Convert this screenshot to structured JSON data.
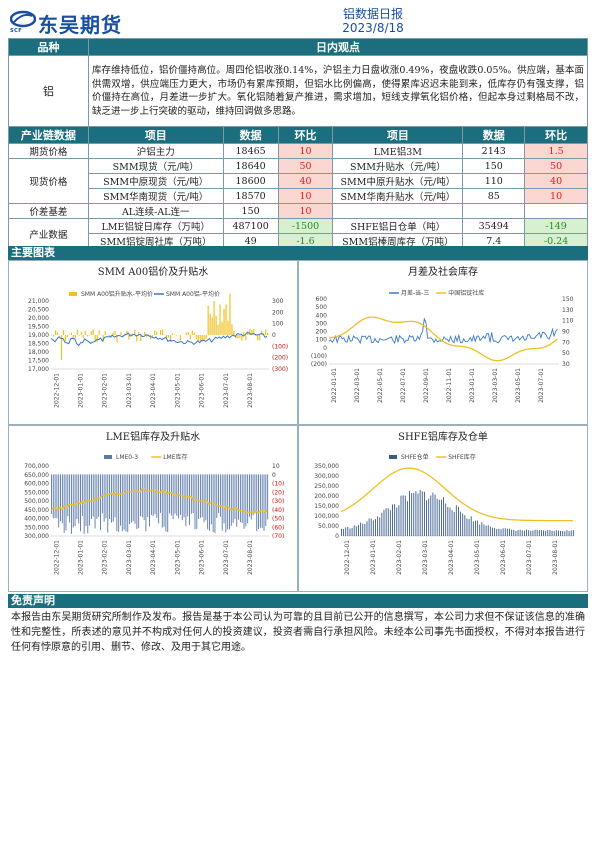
{
  "header": {
    "logo_text": "东吴期货",
    "logo_sub": "SCF",
    "title": "铝数据日报",
    "date": "2023/8/18"
  },
  "view": {
    "col_kind": "品种",
    "col_view": "日内观点",
    "kind": "铝",
    "text": "库存维持低位，铝价僵持高位。周四伦铝收涨0.14%，沪铝主力日盘收涨0.49%，夜盘收跌0.05%。供应端，基本面供需双增，供应端压力更大，市场仍有累库预期，但铝水比例偏高，使得累库迟迟未能到来，低库存仍有强支撑，铝价僵持在高位，月差进一步扩大。氧化铝随着复产推进，需求增加，短线支撑氧化铝价格，但起本身过剩格局不改，缺乏进一步上行突破的驱动，维持回调做多思路。"
  },
  "data_table": {
    "headers": [
      "产业链数据",
      "项目",
      "数据",
      "环比",
      "项目",
      "数据",
      "环比"
    ],
    "rows": [
      {
        "group": "期货价格",
        "left_item": "沪铝主力",
        "left_value": "18465",
        "left_change": "10",
        "left_dir": "up",
        "right_item": "LME铝3M",
        "right_value": "2143",
        "right_change": "1.5",
        "right_dir": "up"
      },
      {
        "group": "现货价格",
        "left_item": "SMM现货（元/吨）",
        "left_value": "18640",
        "left_change": "50",
        "left_dir": "up",
        "right_item": "SMM升贴水（元/吨）",
        "right_value": "150",
        "right_change": "50",
        "right_dir": "up"
      },
      {
        "group": "",
        "left_item": "SMM中原现货（元/吨）",
        "left_value": "18600",
        "left_change": "40",
        "left_dir": "up",
        "right_item": "SMM中原升贴水（元/吨）",
        "right_value": "110",
        "right_change": "40",
        "right_dir": "up"
      },
      {
        "group": "",
        "left_item": "SMM华南现货（元/吨）",
        "left_value": "18570",
        "left_change": "10",
        "left_dir": "up",
        "right_item": "SMM华南升贴水（元/吨）",
        "right_value": "85",
        "right_change": "10",
        "right_dir": "up"
      },
      {
        "group": "价差基差",
        "left_item": "AL连续-AL连一",
        "left_value": "150",
        "left_change": "10",
        "left_dir": "up",
        "right_item": "",
        "right_value": "",
        "right_change": "",
        "right_dir": "none"
      },
      {
        "group": "产业数据",
        "left_item": "LME铝锭日库存（万吨）",
        "left_value": "487100",
        "left_change": "-1500",
        "left_dir": "down",
        "right_item": "SHFE铝日仓单（吨）",
        "right_value": "35494",
        "right_change": "-149",
        "right_dir": "down"
      },
      {
        "group": "",
        "left_item": "SMM铝锭周社库（万吨）",
        "left_value": "49",
        "left_change": "-1.6",
        "left_dir": "down",
        "right_item": "SMM铝棒周库存（万吨）",
        "right_value": "7.4",
        "right_change": "-0.24",
        "right_dir": "down"
      }
    ]
  },
  "charts_section": {
    "title": "主要图表"
  },
  "charts": [
    {
      "title": "SMM A00铝价及升贴水",
      "legend": [
        "SMM A00铝升贴水-平均价",
        "SMM A00铝-平均价"
      ],
      "left_ticks": [
        "21,000",
        "20,500",
        "20,000",
        "19,500",
        "19,000",
        "18,500",
        "18,000",
        "17,500",
        "17,000"
      ],
      "right_ticks": [
        "300",
        "200",
        "100",
        "0",
        "(100)",
        "(200)",
        "(300)"
      ],
      "x_ticks": [
        "2022-12-01",
        "2023-01-01",
        "2023-02-01",
        "2023-03-01",
        "2023-04-01",
        "2023-05-01",
        "2023-06-01",
        "2023-07-01",
        "2023-08-01"
      ],
      "colors": {
        "bar": "#f0c020",
        "line": "#3a78c8"
      }
    },
    {
      "title": "月差及社会库存",
      "legend": [
        "月差-当-三",
        "中国铝锭社库"
      ],
      "left_ticks": [
        "600",
        "500",
        "400",
        "300",
        "200",
        "100",
        "0",
        "(100)",
        "(200)"
      ],
      "right_ticks": [
        "150",
        "130",
        "110",
        "90",
        "70",
        "50",
        "30"
      ],
      "x_ticks": [
        "2022-01-01",
        "2022-03-01",
        "2022-05-01",
        "2022-07-01",
        "2022-09-01",
        "2022-11-01",
        "2023-01-01",
        "2023-03-01",
        "2023-05-01",
        "2023-07-01"
      ],
      "colors": {
        "line1": "#3a78c8",
        "line2": "#f0c020"
      }
    },
    {
      "title": "LME铝库存及升贴水",
      "legend": [
        "LME0-3",
        "LME库存"
      ],
      "left_ticks": [
        "700,000",
        "650,000",
        "600,000",
        "550,000",
        "500,000",
        "450,000",
        "400,000",
        "350,000",
        "300,000"
      ],
      "right_ticks": [
        "10",
        "0",
        "(10)",
        "(20)",
        "(30)",
        "(40)",
        "(50)",
        "(60)",
        "(70)"
      ],
      "x_ticks": [
        "2022-12-01",
        "2023-01-01",
        "2023-02-01",
        "2023-03-01",
        "2023-04-01",
        "2023-05-01",
        "2023-06-01",
        "2023-07-01",
        "2023-08-01"
      ],
      "colors": {
        "bar": "#5a78a8",
        "line": "#f0c020"
      }
    },
    {
      "title": "SHFE铝库存及仓单",
      "legend": [
        "SHFE仓单",
        "SHFE库存"
      ],
      "left_ticks": [
        "350,000",
        "300,000",
        "250,000",
        "200,000",
        "150,000",
        "100,000",
        "50,000",
        "0"
      ],
      "x_ticks": [
        "2022-12-01",
        "2023-01-01",
        "2023-02-01",
        "2023-03-01",
        "2023-04-01",
        "2023-05-01",
        "2023-06-01",
        "2023-07-01",
        "2023-08-01"
      ],
      "colors": {
        "bar": "#3a5a8a",
        "line": "#f0c020"
      }
    }
  ],
  "disclaimer": {
    "title": "免责声明",
    "text": "本报告由东吴期货研究所制作及发布。报告是基于本公司认为可靠的且目前已公开的信息撰写，本公司力求但不保证该信息的准确性和完整性，所表述的意见并不构成对任何人的投资建议，投资者需自行承担风险。未经本公司事先书面授权，不得对本报告进行任何有悖原意的引用、删节、修改、及用于其它用途。"
  }
}
